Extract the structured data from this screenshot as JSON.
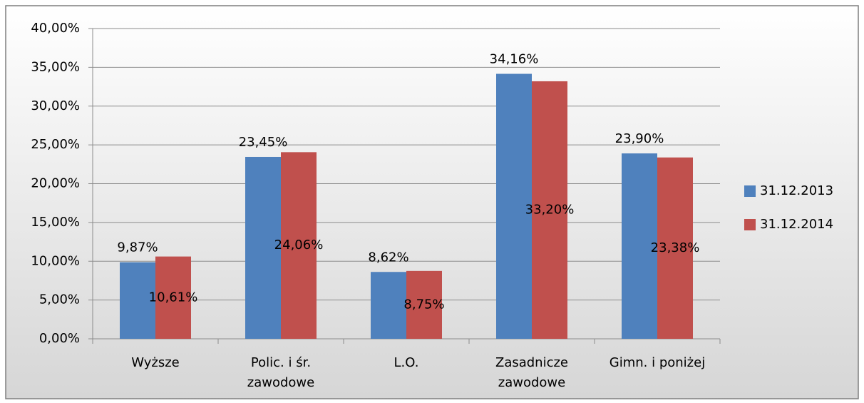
{
  "chart_data": {
    "type": "bar",
    "categories": [
      "Wyższe",
      "Polic. i śr. zawodowe",
      "L.O.",
      "Zasadnicze zawodowe",
      "Gimn. i poniżej"
    ],
    "series": [
      {
        "name": "31.12.2013",
        "color": "#4f81bd",
        "values": [
          9.87,
          23.45,
          8.62,
          34.16,
          23.9
        ],
        "value_labels": [
          "9,87%",
          "23,45%",
          "8,62%",
          "34,16%",
          "23,90%"
        ]
      },
      {
        "name": "31.12.2014",
        "color": "#c0504d",
        "values": [
          10.61,
          24.06,
          8.75,
          33.2,
          23.38
        ],
        "value_labels": [
          "10,61%",
          "24,06%",
          "8,75%",
          "33,20%",
          "23,38%"
        ]
      }
    ],
    "ylim": [
      0,
      40
    ],
    "yticks": [
      {
        "value": 0,
        "label": "0,00%"
      },
      {
        "value": 5,
        "label": "5,00%"
      },
      {
        "value": 10,
        "label": "10,00%"
      },
      {
        "value": 15,
        "label": "15,00%"
      },
      {
        "value": 20,
        "label": "20,00%"
      },
      {
        "value": 25,
        "label": "25,00%"
      },
      {
        "value": 30,
        "label": "30,00%"
      },
      {
        "value": 35,
        "label": "35,00%"
      },
      {
        "value": 40,
        "label": "40,00%"
      }
    ],
    "grid": true,
    "legend": "right"
  }
}
